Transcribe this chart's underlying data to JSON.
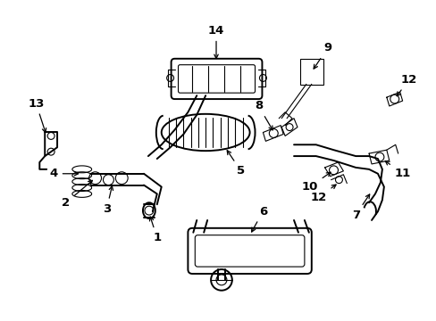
{
  "background_color": "#ffffff",
  "line_color": "#000000",
  "figsize": [
    4.89,
    3.6
  ],
  "dpi": 100,
  "lw_main": 1.4,
  "lw_thin": 0.8,
  "label_fontsize": 9.5
}
